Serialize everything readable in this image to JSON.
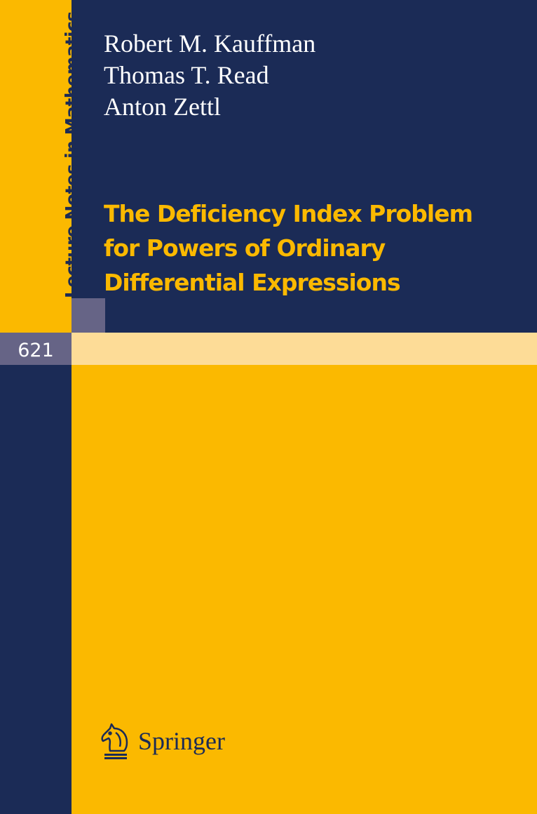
{
  "series": "Lecture Notes in Mathematics",
  "volume_number": "621",
  "authors": [
    "Robert M. Kauffman",
    "Thomas T. Read",
    "Anton Zettl"
  ],
  "title_lines": [
    "The Deficiency Index Problem",
    "for Powers of Ordinary",
    "Differential Expressions"
  ],
  "publisher": {
    "name": "Springer",
    "logo_icon": "knight-horse-logo"
  },
  "colors": {
    "yellow": "#FBB900",
    "navy": "#1B2B56",
    "gray": "#666486",
    "light_band": "#FDDC97"
  }
}
